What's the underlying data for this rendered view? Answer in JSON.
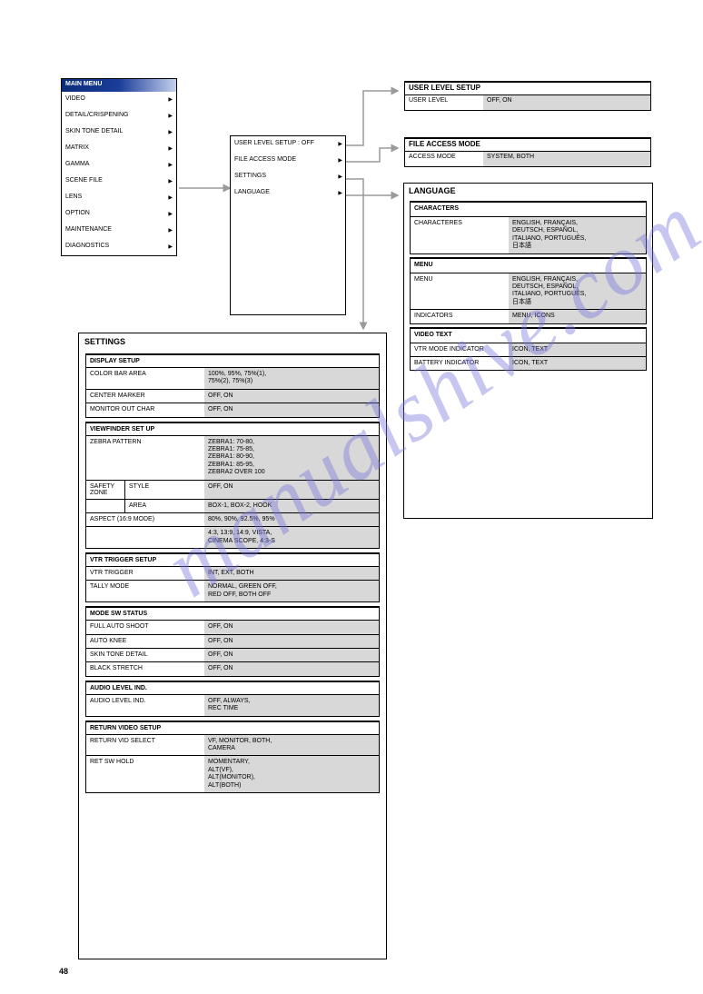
{
  "page": {
    "number": "48",
    "watermark": "manualshive.com"
  },
  "main_menu": {
    "title": "MAIN MENU",
    "items": [
      {
        "label": "VIDEO",
        "arrow": true
      },
      {
        "label": "DETAIL/CRISPENING",
        "arrow": true
      },
      {
        "label": "SKIN TONE DETAIL",
        "arrow": true
      },
      {
        "label": "MATRIX",
        "arrow": true
      },
      {
        "label": "GAMMA",
        "arrow": true
      },
      {
        "label": "SCENE FILE",
        "arrow": true
      },
      {
        "label": "LENS",
        "arrow": true
      },
      {
        "label": "OPTION",
        "arrow": true
      },
      {
        "label": "MAINTENANCE",
        "arrow": true
      },
      {
        "label": "DIAGNOSTICS",
        "arrow": true
      }
    ]
  },
  "options": {
    "items": [
      {
        "label": "USER LEVEL SETUP",
        "arrow": true,
        "value": ": OFF"
      },
      {
        "label": "FILE ACCESS MODE",
        "arrow": true,
        "value": ""
      },
      {
        "label": "SETTINGS",
        "arrow": true
      },
      {
        "label": "LANGUAGE",
        "arrow": true
      }
    ]
  },
  "user_level": {
    "title": "USER LEVEL SETUP",
    "label": "USER LEVEL",
    "value": "OFF, ON"
  },
  "file_access": {
    "title": "FILE ACCESS MODE",
    "label": "ACCESS MODE",
    "value": "SYSTEM, BOTH"
  },
  "language": {
    "title": "LANGUAGE",
    "groups": [
      {
        "header": "CHARACTERS",
        "rows": [
          {
            "l": "CHARACTERES",
            "r": "ENGLISH, FRANÇAIS,\nDEUTSCH, ESPAÑOL,\nITALIANO, PORTUGUÊS,\n日本語"
          }
        ]
      },
      {
        "header": "MENU",
        "rows": [
          {
            "l": "MENU",
            "r": "ENGLISH, FRANÇAIS,\nDEUTSCH, ESPAÑOL,\nITALIANO, PORTUGUÊS,\n日本語"
          },
          {
            "l": "INDICATORS",
            "r": "MENU, ICONS"
          }
        ]
      },
      {
        "header": "VIDEO TEXT",
        "rows": [
          {
            "l": "VTR MODE INDICATOR",
            "r": "ICON, TEXT"
          },
          {
            "l": "BATTERY INDICATOR",
            "r": "ICON, TEXT"
          }
        ]
      }
    ]
  },
  "settings": {
    "title": "SETTINGS",
    "groups": [
      {
        "header": "DISPLAY SETUP",
        "rows": [
          {
            "l": "COLOR BAR AREA",
            "r": "100%, 95%, 75%(1),\n75%(2), 75%(3)"
          },
          {
            "l": "CENTER MARKER",
            "r": "OFF, ON"
          },
          {
            "l": "MONITOR OUT CHAR",
            "r": "OFF, ON"
          }
        ]
      },
      {
        "header": "VIEWFINDER SET UP",
        "rows": [
          {
            "l": "ZEBRA PATTERN",
            "r": "ZEBRA1: 70-80,\nZEBRA1: 75-85,\nZEBRA1: 80-90,\nZEBRA1: 85-95,\nZEBRA2 OVER 100"
          },
          {
            "l": "SAFETY ZONE",
            "sub": "STYLE",
            "r": "OFF, ON"
          },
          {
            "l": "",
            "sub": "AREA",
            "r": "BOX-1, BOX-2, HOOK"
          },
          {
            "l": "ASPECT (16:9 MODE)",
            "r": "80%, 90%, 92.5%, 95%"
          },
          {
            "l": "",
            "r": "4:3, 13:9, 14:9, VISTA,\nCINEMA SCOPE, 4:3-S"
          }
        ]
      },
      {
        "header": "VTR TRIGGER SETUP",
        "rows": [
          {
            "l": "VTR TRIGGER",
            "r": "INT, EXT, BOTH"
          },
          {
            "l": "TALLY MODE",
            "r": "NORMAL, GREEN OFF,\nRED OFF, BOTH OFF"
          }
        ]
      },
      {
        "header": "MODE SW STATUS",
        "rows": [
          {
            "l": "FULL AUTO SHOOT",
            "r": "OFF, ON"
          },
          {
            "l": "AUTO KNEE",
            "r": "OFF, ON"
          },
          {
            "l": "SKIN TONE DETAIL",
            "r": "OFF, ON"
          },
          {
            "l": "BLACK STRETCH",
            "r": "OFF, ON"
          }
        ]
      },
      {
        "header": "AUDIO LEVEL IND.",
        "rows": [
          {
            "l": "AUDIO LEVEL IND.",
            "r": "OFF, ALWAYS,\nREC TIME"
          }
        ]
      },
      {
        "header": "RETURN VIDEO SETUP",
        "rows": [
          {
            "l": "RETURN VID SELECT",
            "r": "VF, MONITOR, BOTH,\nCAMERA"
          },
          {
            "l": "RET SW HOLD",
            "r": "MOMENTARY,\nALT(VF),\nALT(MONITOR),\nALT(BOTH)"
          }
        ]
      }
    ]
  },
  "styling": {
    "border_color": "#000000",
    "shade_color": "#d8d8d8",
    "background": "#ffffff",
    "watermark_color": "rgba(120,120,220,0.42)",
    "header_gradient": [
      "#0a2d7a",
      "#c5d0ed"
    ],
    "arrow_stroke": "#9a9a9a",
    "arrow_width": 1.5,
    "font_size_body": 7,
    "font_size_title": 9
  }
}
